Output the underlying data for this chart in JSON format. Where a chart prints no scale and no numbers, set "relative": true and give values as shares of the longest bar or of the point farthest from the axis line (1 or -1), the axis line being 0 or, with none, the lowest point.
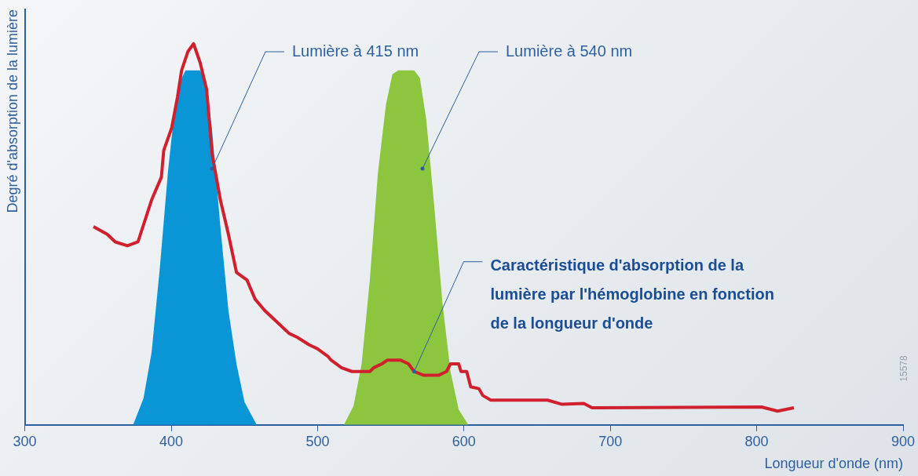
{
  "chart_data": {
    "type": "line",
    "relative": true,
    "xlabel": "Longueur d'onde (nm)",
    "ylabel": "Degré d'absorption de la lumière",
    "xlim": [
      300,
      900
    ],
    "xticks": [
      300,
      400,
      500,
      600,
      700,
      800,
      900
    ],
    "legend": false,
    "grid": false,
    "series": [
      {
        "type": "area",
        "color": "#0a96d6",
        "x": [
          374,
          381.1,
          386.6,
          392.2,
          397.7,
          402.1,
          406,
          409.8,
          419.8,
          424.2,
          428,
          433.6,
          439.1,
          444.6,
          450.1,
          458.4
        ],
        "values": [
          0,
          0.07,
          0.19,
          0.41,
          0.66,
          0.82,
          0.9,
          0.93,
          0.93,
          0.89,
          0.77,
          0.52,
          0.3,
          0.16,
          0.06,
          0
        ]
      },
      {
        "type": "area",
        "color": "#8cc63f",
        "x": [
          518,
          524.6,
          530.1,
          535.7,
          541.2,
          546.7,
          551.1,
          555,
          566,
          569.9,
          574.3,
          579.8,
          585.3,
          590.8,
          596.4,
          603
        ],
        "values": [
          0,
          0.05,
          0.16,
          0.38,
          0.66,
          0.84,
          0.92,
          0.93,
          0.93,
          0.91,
          0.8,
          0.57,
          0.32,
          0.14,
          0.04,
          0
        ]
      },
      {
        "type": "line",
        "color": "#d0202e",
        "x": [
          346.9,
          356.3,
          361.8,
          370.1,
          377.3,
          386.6,
          393.3,
          394.9,
          400.4,
          404.3,
          407.1,
          411.5,
          415.3,
          419.8,
          424.2,
          428,
          433.6,
          439.1,
          444.6,
          451.8,
          457.3,
          463.9,
          472.2,
          480.5,
          486,
          494.3,
          499.8,
          507,
          509.2,
          516.3,
          523.5,
          535.7,
          538.4,
          543.9,
          547.8,
          556.6,
          562.1,
          566,
          572.6,
          582.6,
          588.1,
          590.8,
          596.4,
          598,
          601.9,
          604.6,
          610.2,
          612.9,
          618.4,
          657.1,
          667,
          681.9,
          687.5,
          803.3,
          814.3,
          825.4
        ],
        "values": [
          0.52,
          0.5,
          0.48,
          0.47,
          0.48,
          0.59,
          0.65,
          0.72,
          0.78,
          0.86,
          0.93,
          0.98,
          1,
          0.95,
          0.88,
          0.71,
          0.59,
          0.5,
          0.4,
          0.38,
          0.33,
          0.3,
          0.27,
          0.24,
          0.23,
          0.21,
          0.2,
          0.18,
          0.17,
          0.15,
          0.14,
          0.14,
          0.15,
          0.16,
          0.17,
          0.17,
          0.16,
          0.14,
          0.13,
          0.13,
          0.14,
          0.16,
          0.16,
          0.14,
          0.14,
          0.1,
          0.095,
          0.077,
          0.065,
          0.065,
          0.054,
          0.056,
          0.045,
          0.047,
          0.036,
          0.045
        ]
      }
    ],
    "annotations": [
      "Lumière à 415 nm",
      "Lumière à 540 nm",
      {
        "text": "Caractéristique d'absorption de la lumière par l'hémoglobine en fonction de la longueur d'onde",
        "x": 566,
        "y": 0.14
      },
      "15578"
    ]
  }
}
